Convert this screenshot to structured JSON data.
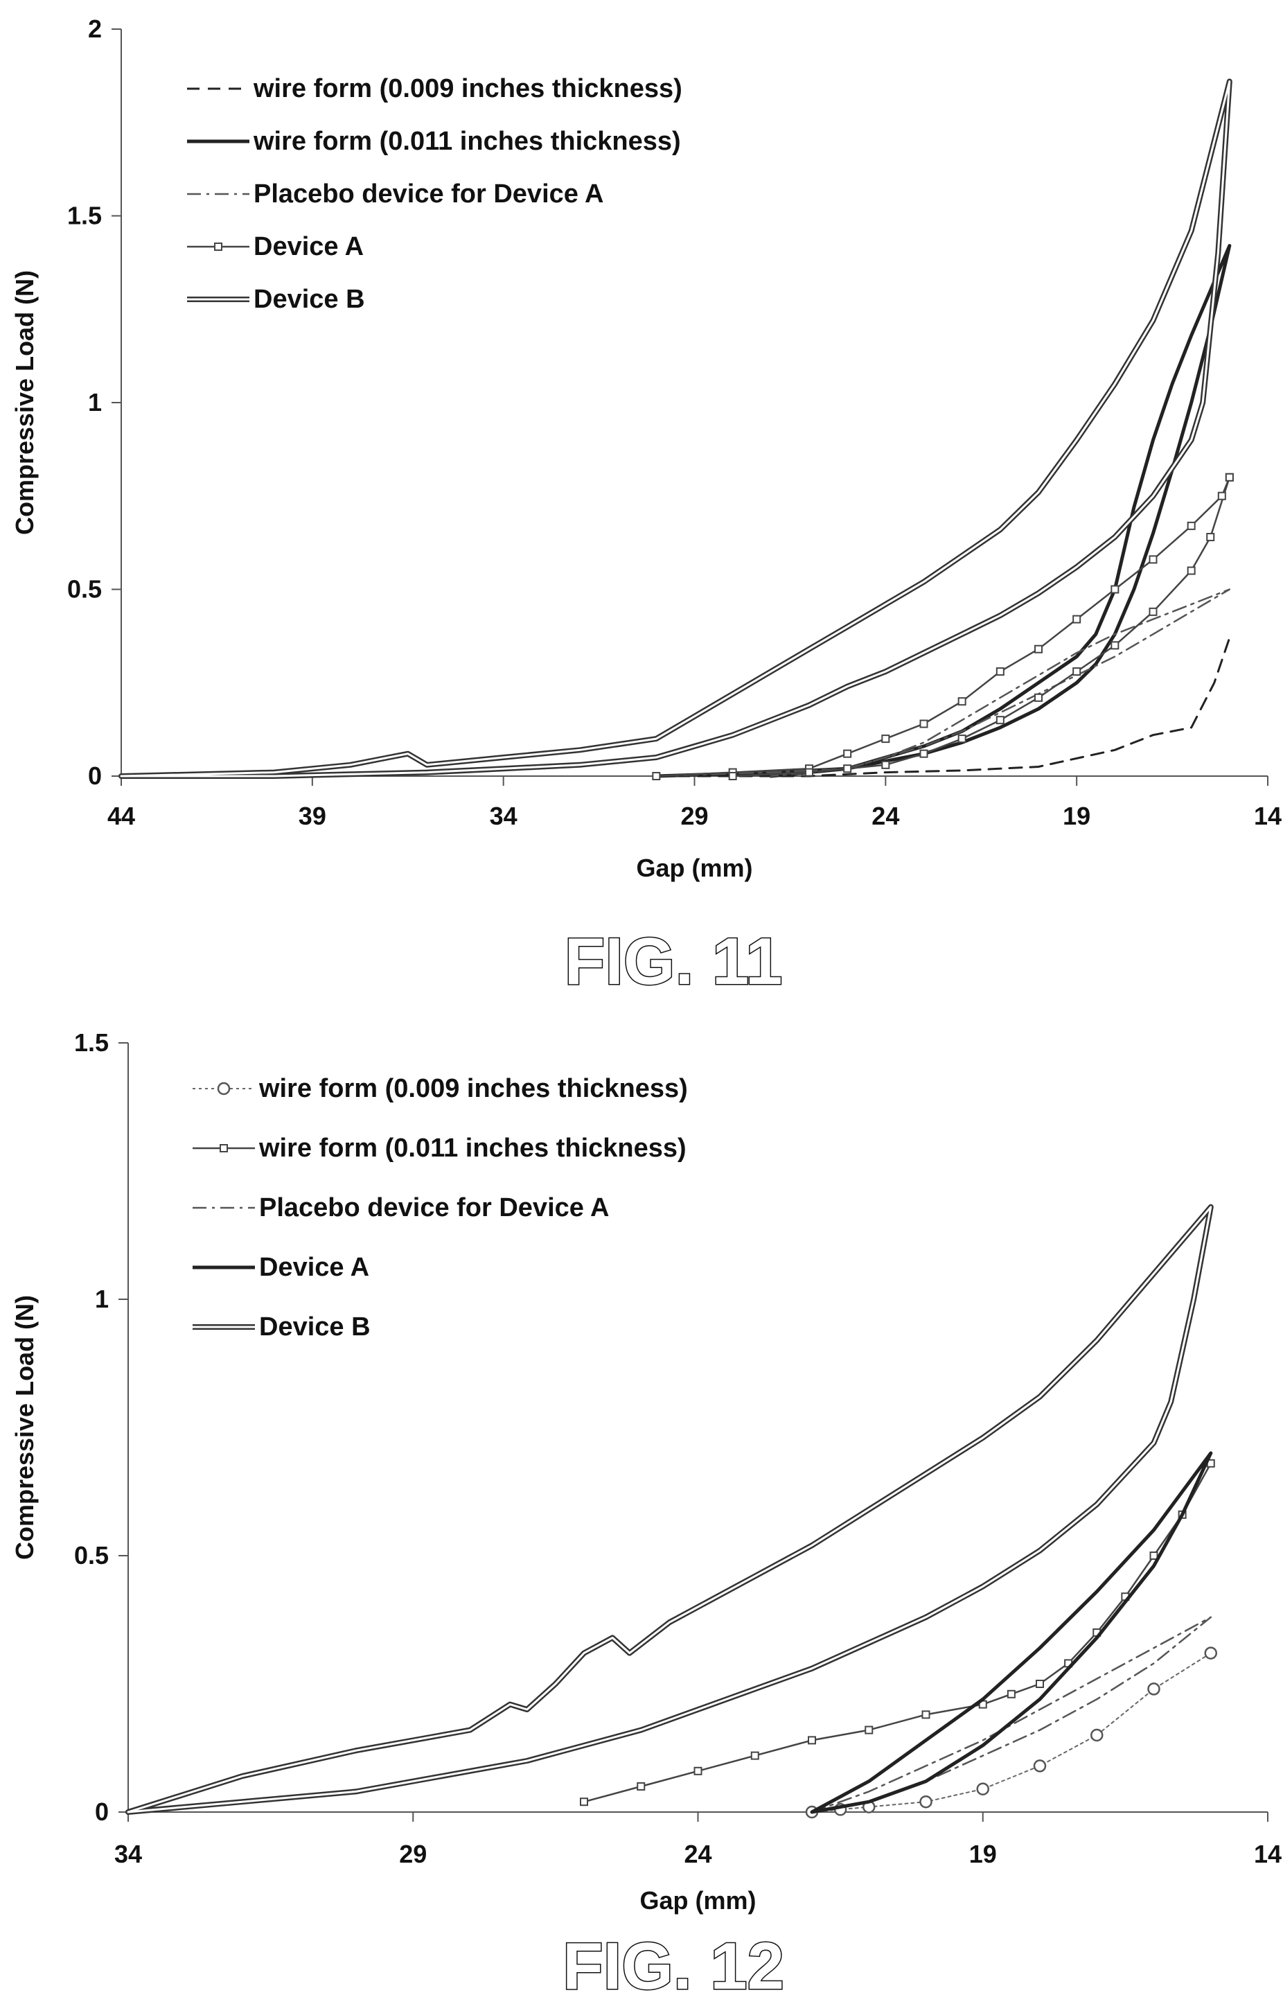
{
  "chart_data": [
    {
      "type": "line",
      "caption": "FIG. 11",
      "xlabel": "Gap (mm)",
      "ylabel": "Compressive Load (N)",
      "xlim": [
        44,
        14
      ],
      "ylim": [
        0,
        2
      ],
      "xticks": [
        "44",
        "39",
        "34",
        "29",
        "24",
        "19",
        "14"
      ],
      "yticks": [
        "0",
        "0.5",
        "1",
        "1.5",
        "2"
      ],
      "grid": false,
      "legend": "top-left",
      "series": [
        {
          "name": "wire form (0.009 inches thickness)",
          "style": "dashed",
          "x": [
            30,
            26,
            24,
            22,
            20,
            18,
            17,
            16,
            15.4,
            15
          ],
          "y": [
            0,
            0,
            0.01,
            0.015,
            0.025,
            0.07,
            0.11,
            0.13,
            0.25,
            0.37
          ]
        },
        {
          "name": "wire form (0.011 inches thickness)",
          "style": "solid-thick",
          "x": [
            30,
            27,
            25,
            24,
            23,
            22,
            21,
            20,
            19,
            18.5,
            18,
            17.5,
            17,
            16.5,
            16,
            15.5,
            15,
            15,
            15.5,
            16,
            16.5,
            17,
            17.5,
            18,
            18.5,
            19,
            20,
            21,
            22,
            23,
            24,
            25,
            27
          ],
          "y": [
            0,
            0.01,
            0.02,
            0.05,
            0.08,
            0.12,
            0.18,
            0.25,
            0.32,
            0.38,
            0.5,
            0.72,
            0.9,
            1.05,
            1.18,
            1.3,
            1.42,
            1.42,
            1.2,
            1.0,
            0.82,
            0.65,
            0.5,
            0.38,
            0.3,
            0.25,
            0.18,
            0.13,
            0.09,
            0.06,
            0.04,
            0.02,
            0
          ]
        },
        {
          "name": "Placebo device for Device A",
          "style": "dashdot",
          "x": [
            30,
            27,
            25,
            24,
            23,
            22,
            21,
            20,
            19,
            18,
            17,
            16,
            15,
            15,
            16,
            17,
            18,
            19,
            20,
            21,
            22,
            23,
            24,
            25,
            27
          ],
          "y": [
            0,
            0.01,
            0.02,
            0.05,
            0.09,
            0.15,
            0.21,
            0.27,
            0.33,
            0.38,
            0.42,
            0.46,
            0.5,
            0.5,
            0.44,
            0.38,
            0.32,
            0.27,
            0.22,
            0.17,
            0.12,
            0.08,
            0.05,
            0.02,
            0
          ]
        },
        {
          "name": "Device A",
          "style": "square-markers",
          "x": [
            30,
            28,
            26,
            25,
            24,
            23,
            22,
            21,
            20,
            19,
            18,
            17,
            16,
            15.2,
            15,
            15,
            15.5,
            16,
            17,
            18,
            19,
            20,
            21,
            22,
            23,
            24,
            25,
            26,
            28
          ],
          "y": [
            0,
            0.01,
            0.02,
            0.06,
            0.1,
            0.14,
            0.2,
            0.28,
            0.34,
            0.42,
            0.5,
            0.58,
            0.67,
            0.75,
            0.8,
            0.8,
            0.64,
            0.55,
            0.44,
            0.35,
            0.28,
            0.21,
            0.15,
            0.1,
            0.06,
            0.03,
            0.02,
            0.01,
            0
          ]
        },
        {
          "name": "Device B",
          "style": "double",
          "x": [
            44,
            40,
            38,
            37,
            36.5,
            36,
            34,
            32,
            30,
            29,
            28,
            27,
            26,
            25,
            24,
            23,
            22,
            21,
            20,
            19,
            18,
            17,
            16,
            15,
            15,
            15.3,
            15.7,
            16,
            17,
            18,
            19,
            20,
            21,
            22,
            23,
            24,
            25,
            26,
            27,
            28,
            29,
            30,
            32,
            34,
            36,
            38,
            40,
            44
          ],
          "y": [
            0,
            0.01,
            0.03,
            0.05,
            0.06,
            0.03,
            0.05,
            0.07,
            0.1,
            0.16,
            0.22,
            0.28,
            0.34,
            0.4,
            0.46,
            0.52,
            0.59,
            0.66,
            0.76,
            0.9,
            1.05,
            1.22,
            1.46,
            1.86,
            1.86,
            1.4,
            1.0,
            0.9,
            0.75,
            0.64,
            0.56,
            0.49,
            0.43,
            0.38,
            0.33,
            0.28,
            0.24,
            0.19,
            0.15,
            0.11,
            0.08,
            0.05,
            0.03,
            0.02,
            0.01,
            0.005,
            0,
            0
          ]
        }
      ]
    },
    {
      "type": "line",
      "caption": "FIG. 12",
      "xlabel": "Gap (mm)",
      "ylabel": "Compressive Load (N)",
      "xlim": [
        34,
        14
      ],
      "ylim": [
        0,
        1.5
      ],
      "xticks": [
        "34",
        "29",
        "24",
        "19",
        "14"
      ],
      "yticks": [
        "0",
        "0.5",
        "1",
        "1.5"
      ],
      "grid": false,
      "legend": "top-left",
      "series": [
        {
          "name": "wire form (0.009 inches thickness)",
          "style": "circle-markers",
          "x": [
            22,
            21.5,
            21,
            20,
            19,
            18,
            17,
            16,
            15
          ],
          "y": [
            0,
            0.005,
            0.01,
            0.02,
            0.045,
            0.09,
            0.15,
            0.24,
            0.31
          ]
        },
        {
          "name": "wire form (0.011 inches thickness)",
          "style": "square-markers",
          "x": [
            15,
            15.5,
            16,
            16.5,
            17,
            17.5,
            18,
            18.5,
            19,
            20,
            21,
            22,
            23,
            24,
            25,
            26
          ],
          "y": [
            0.68,
            0.58,
            0.5,
            0.42,
            0.35,
            0.29,
            0.25,
            0.23,
            0.21,
            0.19,
            0.16,
            0.14,
            0.11,
            0.08,
            0.05,
            0.02
          ]
        },
        {
          "name": "Placebo device for Device A",
          "style": "dashdot",
          "x": [
            22,
            21,
            20,
            19,
            18,
            17,
            16,
            15,
            15,
            16,
            17,
            18,
            19,
            20,
            21,
            22
          ],
          "y": [
            0,
            0.04,
            0.09,
            0.14,
            0.2,
            0.26,
            0.32,
            0.38,
            0.38,
            0.29,
            0.22,
            0.16,
            0.11,
            0.06,
            0.02,
            0
          ]
        },
        {
          "name": "Device A",
          "style": "solid-thick",
          "x": [
            22,
            21,
            20,
            19,
            18,
            17,
            16,
            15,
            15,
            15.5,
            16,
            17,
            18,
            19,
            20,
            21,
            22
          ],
          "y": [
            0,
            0.06,
            0.14,
            0.22,
            0.32,
            0.43,
            0.55,
            0.7,
            0.7,
            0.58,
            0.48,
            0.34,
            0.22,
            0.13,
            0.06,
            0.02,
            0
          ]
        },
        {
          "name": "Device B",
          "style": "double",
          "x": [
            34,
            32,
            30,
            29,
            28,
            27.3,
            27,
            26.5,
            26,
            25.5,
            25.2,
            24.5,
            24,
            23,
            22,
            21,
            20,
            19,
            18,
            17,
            16,
            15,
            15,
            15.3,
            15.7,
            16,
            17,
            18,
            19,
            20,
            21,
            22,
            23,
            24,
            25,
            26,
            27,
            28,
            29,
            30,
            32,
            34
          ],
          "y": [
            0,
            0.07,
            0.12,
            0.14,
            0.16,
            0.21,
            0.2,
            0.25,
            0.31,
            0.34,
            0.31,
            0.37,
            0.4,
            0.46,
            0.52,
            0.59,
            0.66,
            0.73,
            0.81,
            0.92,
            1.05,
            1.18,
            1.18,
            1.0,
            0.8,
            0.72,
            0.6,
            0.51,
            0.44,
            0.38,
            0.33,
            0.28,
            0.24,
            0.2,
            0.16,
            0.13,
            0.1,
            0.08,
            0.06,
            0.04,
            0.02,
            0
          ]
        }
      ]
    }
  ]
}
